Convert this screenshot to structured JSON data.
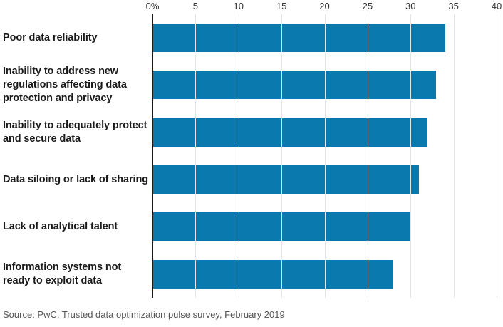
{
  "chart_data": {
    "type": "bar",
    "orientation": "horizontal",
    "title": "",
    "categories": [
      "Poor data reliability",
      "Inability to address new regulations affecting data protection and privacy",
      "Inability to adequately protect and secure data",
      "Data siloing or lack of sharing",
      "Lack of analytical talent",
      "Information systems not ready to exploit data"
    ],
    "values": [
      34,
      33,
      32,
      31,
      30,
      28
    ],
    "xlabel": "",
    "ylabel": "",
    "xlim": [
      0,
      40
    ],
    "ticks": [
      {
        "value": 0,
        "label": "0%"
      },
      {
        "value": 5,
        "label": "5"
      },
      {
        "value": 10,
        "label": "10"
      },
      {
        "value": 15,
        "label": "15"
      },
      {
        "value": 20,
        "label": "20"
      },
      {
        "value": 25,
        "label": "25"
      },
      {
        "value": 30,
        "label": "30"
      },
      {
        "value": 35,
        "label": "35"
      },
      {
        "value": 40,
        "label": "40"
      }
    ],
    "grid": true,
    "legend": "none",
    "colors": {
      "bar": "#0a79ae",
      "axis_line": "#1a1a1a",
      "gridline": "#e4e4e4",
      "category_label": "#1a1a1a",
      "tick_label": "#333333",
      "source_text": "#555555"
    }
  },
  "source": {
    "text": "Source: PwC, Trusted data optimization pulse survey, February 2019"
  }
}
